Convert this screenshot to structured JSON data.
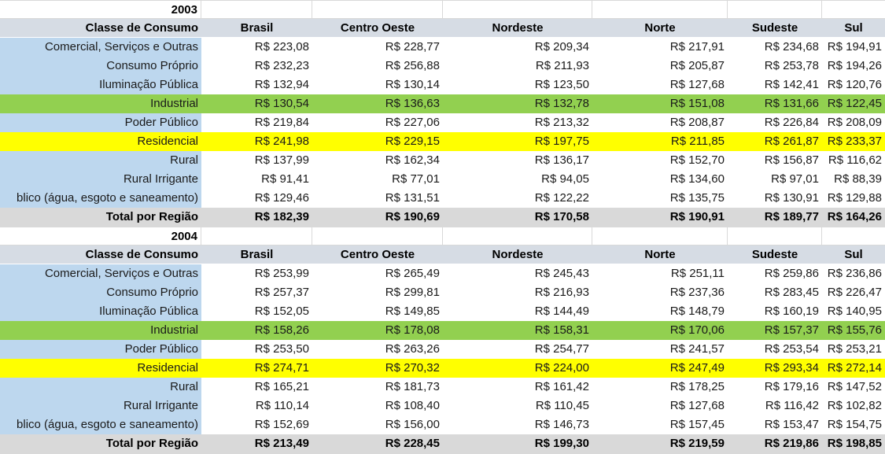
{
  "colors": {
    "header_fill": "#D6DCE4",
    "label_fill": "#BDD7EE",
    "green_fill": "#92D050",
    "yellow_fill": "#FFFF00",
    "total_fill": "#D9D9D9",
    "gridline": "#D9D9D9"
  },
  "currency_prefix": "R$",
  "columns": [
    "Classe de Consumo",
    "Brasil",
    "Centro Oeste",
    "Nordeste",
    "Norte",
    "Sudeste",
    "Sul"
  ],
  "sections": [
    {
      "year": "2003",
      "rows": [
        {
          "label": "Comercial, Serviços e Outras",
          "highlight": "none",
          "values": [
            "R$ 223,08",
            "R$ 228,77",
            "R$ 209,34",
            "R$ 217,91",
            "R$ 234,68",
            "R$ 194,91"
          ]
        },
        {
          "label": "Consumo Próprio",
          "highlight": "none",
          "values": [
            "R$ 232,23",
            "R$ 256,88",
            "R$ 211,93",
            "R$ 205,87",
            "R$ 253,78",
            "R$ 194,26"
          ]
        },
        {
          "label": "Iluminação Pública",
          "highlight": "none",
          "values": [
            "R$ 132,94",
            "R$ 130,14",
            "R$ 123,50",
            "R$ 127,68",
            "R$ 142,41",
            "R$ 120,76"
          ]
        },
        {
          "label": "Industrial",
          "highlight": "green",
          "values": [
            "R$ 130,54",
            "R$ 136,63",
            "R$ 132,78",
            "R$ 151,08",
            "R$ 131,66",
            "R$ 122,45"
          ]
        },
        {
          "label": "Poder Público",
          "highlight": "none",
          "values": [
            "R$ 219,84",
            "R$ 227,06",
            "R$ 213,32",
            "R$ 208,87",
            "R$ 226,84",
            "R$ 208,09"
          ]
        },
        {
          "label": "Residencial",
          "highlight": "yellow",
          "values": [
            "R$ 241,98",
            "R$ 229,15",
            "R$ 197,75",
            "R$ 211,85",
            "R$ 261,87",
            "R$ 233,37"
          ]
        },
        {
          "label": "Rural",
          "highlight": "none",
          "values": [
            "R$ 137,99",
            "R$ 162,34",
            "R$ 136,17",
            "R$ 152,70",
            "R$ 156,87",
            "R$ 116,62"
          ]
        },
        {
          "label": "Rural Irrigante",
          "highlight": "none",
          "values": [
            "R$ 91,41",
            "R$ 77,01",
            "R$ 94,05",
            "R$ 134,60",
            "R$ 97,01",
            "R$ 88,39"
          ]
        },
        {
          "label": "blico (água, esgoto e saneamento)",
          "highlight": "none",
          "values": [
            "R$ 129,46",
            "R$ 131,51",
            "R$ 122,22",
            "R$ 135,75",
            "R$ 130,91",
            "R$ 129,88"
          ]
        }
      ],
      "total": {
        "label": "Total por Região",
        "values": [
          "R$ 182,39",
          "R$ 190,69",
          "R$ 170,58",
          "R$ 190,91",
          "R$ 189,77",
          "R$ 164,26"
        ]
      }
    },
    {
      "year": "2004",
      "rows": [
        {
          "label": "Comercial, Serviços e Outras",
          "highlight": "none",
          "values": [
            "R$ 253,99",
            "R$ 265,49",
            "R$ 245,43",
            "R$ 251,11",
            "R$ 259,86",
            "R$ 236,86"
          ]
        },
        {
          "label": "Consumo Próprio",
          "highlight": "none",
          "values": [
            "R$ 257,37",
            "R$ 299,81",
            "R$ 216,93",
            "R$ 237,36",
            "R$ 283,45",
            "R$ 226,47"
          ]
        },
        {
          "label": "Iluminação Pública",
          "highlight": "none",
          "values": [
            "R$ 152,05",
            "R$ 149,85",
            "R$ 144,49",
            "R$ 148,79",
            "R$ 160,19",
            "R$ 140,95"
          ]
        },
        {
          "label": "Industrial",
          "highlight": "green",
          "values": [
            "R$ 158,26",
            "R$ 178,08",
            "R$ 158,31",
            "R$ 170,06",
            "R$ 157,37",
            "R$ 155,76"
          ]
        },
        {
          "label": "Poder Público",
          "highlight": "none",
          "values": [
            "R$ 253,50",
            "R$ 263,26",
            "R$ 254,77",
            "R$ 241,57",
            "R$ 253,54",
            "R$ 253,21"
          ]
        },
        {
          "label": "Residencial",
          "highlight": "yellow",
          "values": [
            "R$ 274,71",
            "R$ 270,32",
            "R$ 224,00",
            "R$ 247,49",
            "R$ 293,34",
            "R$ 272,14"
          ]
        },
        {
          "label": "Rural",
          "highlight": "none",
          "values": [
            "R$ 165,21",
            "R$ 181,73",
            "R$ 161,42",
            "R$ 178,25",
            "R$ 179,16",
            "R$ 147,52"
          ]
        },
        {
          "label": "Rural Irrigante",
          "highlight": "none",
          "values": [
            "R$ 110,14",
            "R$ 108,40",
            "R$ 110,45",
            "R$ 127,68",
            "R$ 116,42",
            "R$ 102,82"
          ]
        },
        {
          "label": "blico (água, esgoto e saneamento)",
          "highlight": "none",
          "values": [
            "R$ 152,69",
            "R$ 156,00",
            "R$ 146,73",
            "R$ 157,45",
            "R$ 153,47",
            "R$ 154,75"
          ]
        }
      ],
      "total": {
        "label": "Total por Região",
        "values": [
          "R$ 213,49",
          "R$ 228,45",
          "R$ 199,30",
          "R$ 219,59",
          "R$ 219,86",
          "R$ 198,85"
        ]
      }
    }
  ]
}
